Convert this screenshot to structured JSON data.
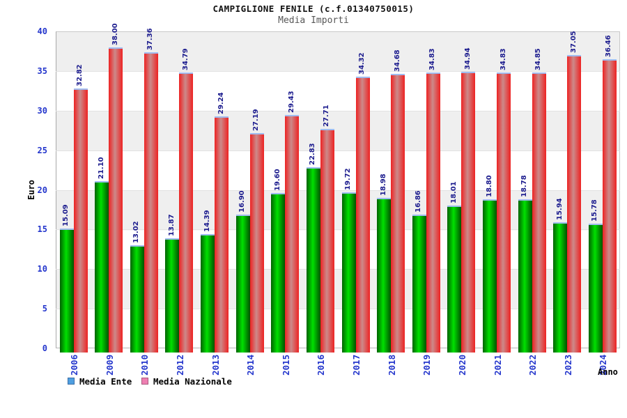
{
  "header": {
    "title": "CAMPIGLIONE FENILE (c.f.01340750015)",
    "subtitle": "Media Importi"
  },
  "chart_data": {
    "type": "bar",
    "title": "CAMPIGLIONE FENILE (c.f.01340750015)",
    "subtitle": "Media Importi",
    "xlabel": "Anno",
    "ylabel": "Euro",
    "ylim": [
      0,
      40
    ],
    "ytick_step": 5,
    "grid": "horizontal-bands-alternating",
    "band_colors": [
      "#efefef",
      "#ffffff"
    ],
    "legend_position": "bottom-left",
    "categories": [
      "2006",
      "2009",
      "2010",
      "2012",
      "2013",
      "2014",
      "2015",
      "2016",
      "2017",
      "2018",
      "2019",
      "2020",
      "2021",
      "2022",
      "2023",
      "2024"
    ],
    "series": [
      {
        "name": "Media Ente",
        "legend_color": "#4f9fe0",
        "legend_border": "#3a6ea8",
        "bar_gradient": [
          "#006200",
          "#00e000",
          "#005200"
        ],
        "values": [
          15.09,
          21.1,
          13.02,
          13.87,
          14.39,
          16.9,
          19.6,
          22.83,
          19.72,
          18.98,
          16.86,
          18.01,
          18.8,
          18.78,
          15.94,
          15.78
        ]
      },
      {
        "name": "Media Nazionale",
        "legend_color": "#ee7fb2",
        "legend_border": "#a85a7e",
        "bar_gradient": [
          "#ee2222",
          "#cc8a8a",
          "#ee2222"
        ],
        "values": [
          32.82,
          38.0,
          37.36,
          34.79,
          29.24,
          27.19,
          29.43,
          27.71,
          34.32,
          34.68,
          34.83,
          34.94,
          34.83,
          34.85,
          37.05,
          36.46
        ]
      }
    ],
    "bar_cap_color": "#a0bcf0",
    "value_label_color": "#1c1c8e",
    "tick_label_color": "#2335cc"
  }
}
